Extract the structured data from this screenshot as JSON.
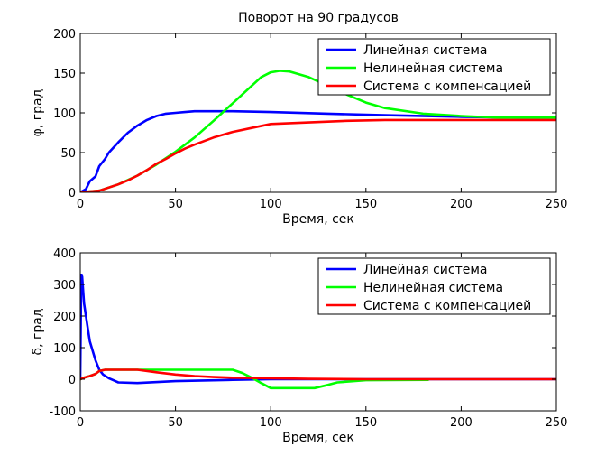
{
  "chart_data": [
    {
      "type": "line",
      "title": "Поворот на 90 градусов",
      "xlabel": "Время, сек",
      "ylabel": "φ, град",
      "xlim": [
        0,
        250
      ],
      "ylim": [
        0,
        200
      ],
      "xticks": [
        0,
        50,
        100,
        150,
        200,
        250
      ],
      "yticks": [
        0,
        50,
        100,
        150,
        200
      ],
      "grid": false,
      "legend": "top-right",
      "series": [
        {
          "name": "Линейная система",
          "color": "#0000ff",
          "x": [
            0,
            3,
            5,
            8,
            10,
            13,
            15,
            20,
            25,
            30,
            35,
            40,
            45,
            50,
            55,
            60,
            70,
            80,
            100,
            130,
            160,
            200,
            230,
            250
          ],
          "y": [
            0,
            4,
            14,
            20,
            33,
            42,
            50,
            63,
            75,
            84,
            91,
            96,
            99,
            100,
            101,
            102,
            102,
            102,
            101,
            99,
            97,
            95,
            94,
            94
          ]
        },
        {
          "name": "Нелинейная система",
          "color": "#00ff00",
          "x": [
            0,
            5,
            10,
            15,
            20,
            30,
            40,
            50,
            60,
            70,
            80,
            90,
            95,
            100,
            105,
            110,
            120,
            130,
            140,
            150,
            160,
            180,
            200,
            220,
            250
          ],
          "y": [
            0,
            1,
            2,
            6,
            10,
            21,
            35,
            51,
            69,
            90,
            112,
            134,
            145,
            151,
            153,
            152,
            145,
            134,
            123,
            113,
            106,
            99,
            96,
            94,
            94
          ]
        },
        {
          "name": "Система с компенсацией",
          "color": "#ff0000",
          "x": [
            0,
            5,
            10,
            15,
            20,
            25,
            30,
            35,
            40,
            45,
            50,
            55,
            60,
            70,
            80,
            90,
            100,
            120,
            140,
            160,
            180,
            200,
            250
          ],
          "y": [
            0,
            1,
            2,
            6,
            10,
            15,
            21,
            28,
            36,
            42,
            49,
            55,
            60,
            69,
            76,
            81,
            86,
            88,
            90,
            91,
            91,
            91,
            91
          ]
        }
      ]
    },
    {
      "type": "line",
      "title": "",
      "xlabel": "Время, сек",
      "ylabel": "δ, град",
      "xlim": [
        0,
        250
      ],
      "ylim": [
        -100,
        400
      ],
      "xticks": [
        0,
        50,
        100,
        150,
        200,
        250
      ],
      "yticks": [
        -100,
        0,
        100,
        200,
        300,
        400
      ],
      "grid": false,
      "legend": "top-right",
      "series": [
        {
          "name": "Линейная система",
          "color": "#0000ff",
          "x": [
            0,
            0.5,
            1,
            2,
            3,
            4,
            5,
            6,
            8,
            10,
            12,
            15,
            20,
            30,
            50,
            80,
            100,
            150,
            200,
            250
          ],
          "y": [
            0,
            330,
            325,
            240,
            200,
            160,
            120,
            100,
            60,
            30,
            15,
            3,
            -10,
            -12,
            -6,
            -2,
            0,
            0,
            0,
            0
          ]
        },
        {
          "name": "Нелинейная система",
          "color": "#00ff00",
          "x": [
            0,
            2,
            5,
            8,
            10,
            13,
            15,
            20,
            30,
            50,
            80,
            85,
            90,
            95,
            100,
            110,
            123,
            130,
            135,
            150,
            183
          ],
          "y": [
            0,
            5,
            10,
            17,
            26,
            30,
            30,
            30,
            30,
            30,
            30,
            20,
            5,
            -12,
            -28,
            -28,
            -28,
            -18,
            -10,
            -3,
            -2
          ]
        },
        {
          "name": "Система с компенсацией",
          "color": "#ff0000",
          "x": [
            0,
            2,
            5,
            8,
            10,
            13,
            15,
            20,
            30,
            40,
            50,
            60,
            70,
            80,
            90,
            100,
            120,
            150,
            200,
            250
          ],
          "y": [
            0,
            5,
            10,
            17,
            26,
            30,
            30,
            30,
            30,
            22,
            15,
            10,
            7,
            5,
            4,
            3,
            1,
            0,
            0,
            0
          ]
        }
      ]
    }
  ]
}
